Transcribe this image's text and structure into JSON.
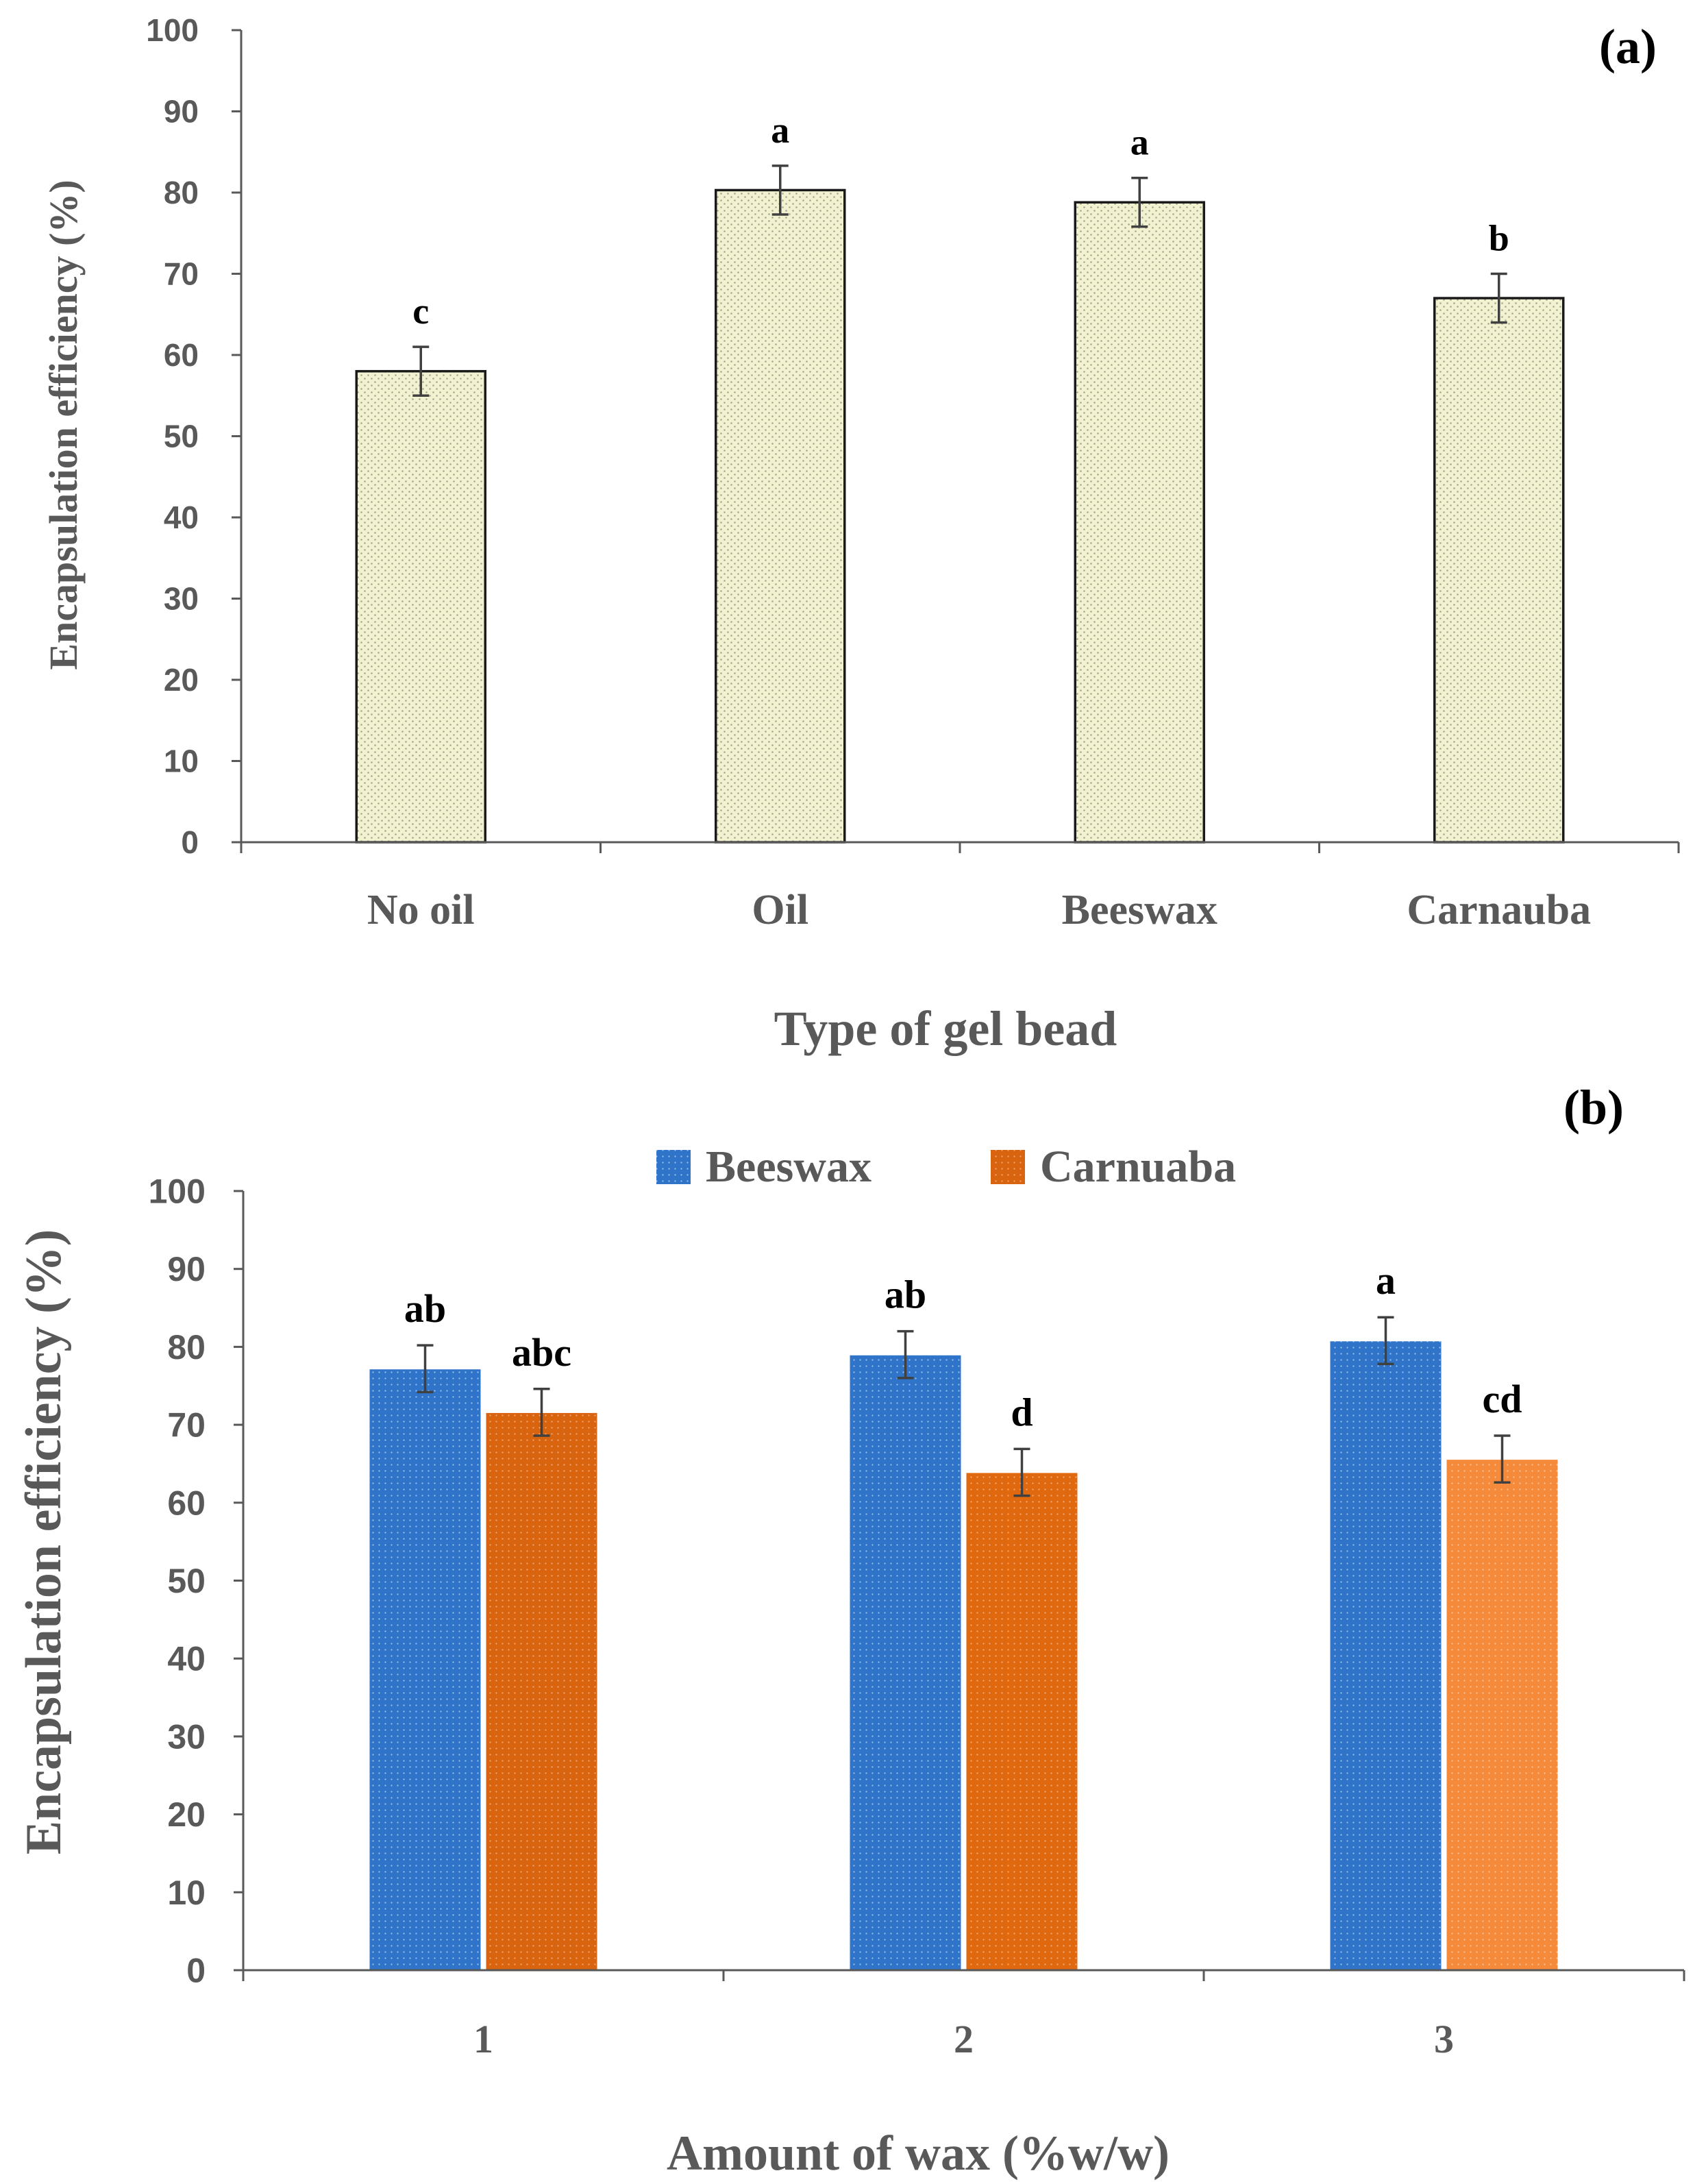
{
  "figure": {
    "colors": {
      "axis": "#595959",
      "bar_a_fill": "#f2f2d0",
      "bar_a_dot": "#a6a691",
      "beeswax": "#2f74c9",
      "carnauba_1": "#d9640f",
      "carnauba_2": "#e0680f",
      "carnauba_3": "#f58a3a",
      "error": "#404040"
    }
  },
  "chart_data": [
    {
      "type": "bar",
      "panel_label": "(a)",
      "title": "",
      "xlabel": "Type of gel bead",
      "ylabel": "Encapsulation efficiency (%)",
      "ylim": [
        0,
        100
      ],
      "yticks": [
        0,
        10,
        20,
        30,
        40,
        50,
        60,
        70,
        80,
        90,
        100
      ],
      "categories": [
        "No oil",
        "Oil",
        "Beeswax",
        "Carnauba"
      ],
      "series": [
        {
          "name": "Encapsulation efficiency",
          "values": [
            58,
            80.3,
            78.8,
            67
          ],
          "errors": [
            3,
            3,
            3,
            3
          ],
          "letters": [
            "c",
            "a",
            "a",
            "b"
          ]
        }
      ]
    },
    {
      "type": "bar",
      "panel_label": "(b)",
      "title": "",
      "xlabel": "Amount of wax (%w/w)",
      "ylabel": "Encapsulation efficiency (%)",
      "ylim": [
        0,
        100
      ],
      "yticks": [
        0,
        10,
        20,
        30,
        40,
        50,
        60,
        70,
        80,
        90,
        100
      ],
      "categories": [
        "1",
        "2",
        "3"
      ],
      "legend_position": "top",
      "series": [
        {
          "name": "Beeswax",
          "values": [
            77.2,
            79,
            80.8
          ],
          "errors": [
            3,
            3,
            3
          ],
          "letters": [
            "ab",
            "ab",
            "a"
          ]
        },
        {
          "name": "Carnuaba",
          "values": [
            71.6,
            63.9,
            65.6
          ],
          "errors": [
            3,
            3,
            3
          ],
          "letters": [
            "abc",
            "d",
            "cd"
          ]
        }
      ]
    }
  ]
}
